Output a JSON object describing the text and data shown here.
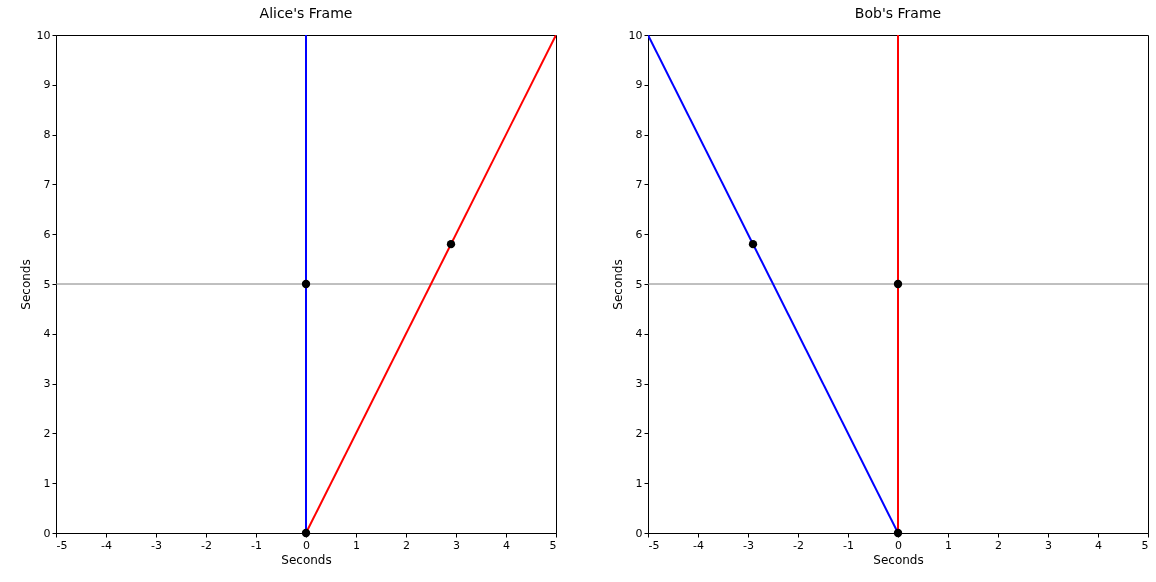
{
  "chart_data": [
    {
      "type": "line",
      "title": "Alice's Frame",
      "xlabel": "Seconds",
      "ylabel": "Seconds",
      "xlim": [
        -5,
        5
      ],
      "ylim": [
        0,
        10
      ],
      "xticks": [
        {
          "value": -5,
          "label": "-5"
        },
        {
          "value": -4,
          "label": "-4"
        },
        {
          "value": -3,
          "label": "-3"
        },
        {
          "value": -2,
          "label": "-2"
        },
        {
          "value": -1,
          "label": "-1"
        },
        0,
        1,
        2,
        3,
        4,
        5
      ],
      "yticks": [
        0,
        1,
        2,
        3,
        4,
        5,
        6,
        7,
        8,
        9,
        10
      ],
      "grid": false,
      "ref_lines": [
        {
          "axis": "y",
          "value": 5,
          "color": "#808080"
        }
      ],
      "series": [
        {
          "type": "line",
          "color": "#0000ff",
          "x": [
            0,
            0
          ],
          "values": [
            0,
            10
          ]
        },
        {
          "type": "line",
          "color": "#ff0000",
          "x": [
            0,
            5
          ],
          "values": [
            0,
            10
          ]
        },
        {
          "type": "scatter",
          "color": "#000000",
          "marker": "circle",
          "x": [
            0,
            0,
            2.9
          ],
          "values": [
            0,
            5,
            5.8
          ]
        }
      ]
    },
    {
      "type": "line",
      "title": "Bob's Frame",
      "xlabel": "Seconds",
      "ylabel": "Seconds",
      "xlim": [
        -5,
        5
      ],
      "ylim": [
        0,
        10
      ],
      "xticks": [
        {
          "value": -5,
          "label": "-5"
        },
        {
          "value": -4,
          "label": "-4"
        },
        {
          "value": -3,
          "label": "-3"
        },
        {
          "value": -2,
          "label": "-2"
        },
        {
          "value": -1,
          "label": "-1"
        },
        0,
        1,
        2,
        3,
        4,
        5
      ],
      "yticks": [
        0,
        1,
        2,
        3,
        4,
        5,
        6,
        7,
        8,
        9,
        10
      ],
      "grid": false,
      "ref_lines": [
        {
          "axis": "y",
          "value": 5,
          "color": "#808080"
        }
      ],
      "series": [
        {
          "type": "line",
          "color": "#0000ff",
          "x": [
            0,
            -5
          ],
          "values": [
            0,
            10
          ]
        },
        {
          "type": "line",
          "color": "#ff0000",
          "x": [
            0,
            0
          ],
          "values": [
            0,
            10
          ]
        },
        {
          "type": "scatter",
          "color": "#000000",
          "marker": "circle",
          "x": [
            0,
            0,
            -2.9
          ],
          "values": [
            0,
            5,
            5.8
          ]
        }
      ]
    }
  ]
}
